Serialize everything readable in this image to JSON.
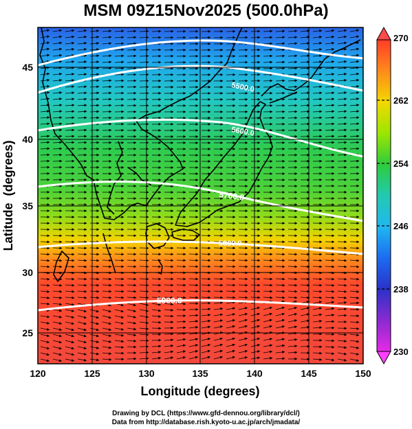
{
  "title": "MSM 09Z15Nov2025 (500.0hPa)",
  "credits": {
    "line1": "Drawing by DCL (https://www.gfd-dennou.org/library/dcl/)",
    "line2": "Data from http://database.rish.kyoto-u.ac.jp/arch/jmadata/"
  },
  "map": {
    "xlabel": "Longitude (degrees)",
    "ylabel": "Latitude  (degrees)",
    "lon_range": [
      120,
      150
    ],
    "lat_range": [
      22.4,
      47.6
    ],
    "lon_ticks": [
      "120",
      "125",
      "130",
      "135",
      "140",
      "145",
      "150"
    ],
    "lat_ticks": [
      "25",
      "30",
      "35",
      "40",
      "45"
    ],
    "contour_labels": [
      "5500.0",
      "5600.0",
      "5700.0",
      "5800.0",
      "5900.0"
    ],
    "colors": {
      "field_low": "#1e4fe0",
      "field_mid": "#22c24e",
      "field_high": "#f04a3a",
      "contour": "#ffffff",
      "vector": "#000000"
    }
  },
  "colorbar": {
    "range": [
      230,
      270
    ],
    "tick_labels": [
      "270",
      "262",
      "254",
      "246",
      "238",
      "230"
    ],
    "colors": [
      "#ff3c28",
      "#ff8a1c",
      "#f2d800",
      "#9ce600",
      "#2ecc3c",
      "#22c9b0",
      "#20b8f0",
      "#1c6cf0",
      "#2a32c8",
      "#8a2ad0",
      "#e62ae6"
    ]
  }
}
